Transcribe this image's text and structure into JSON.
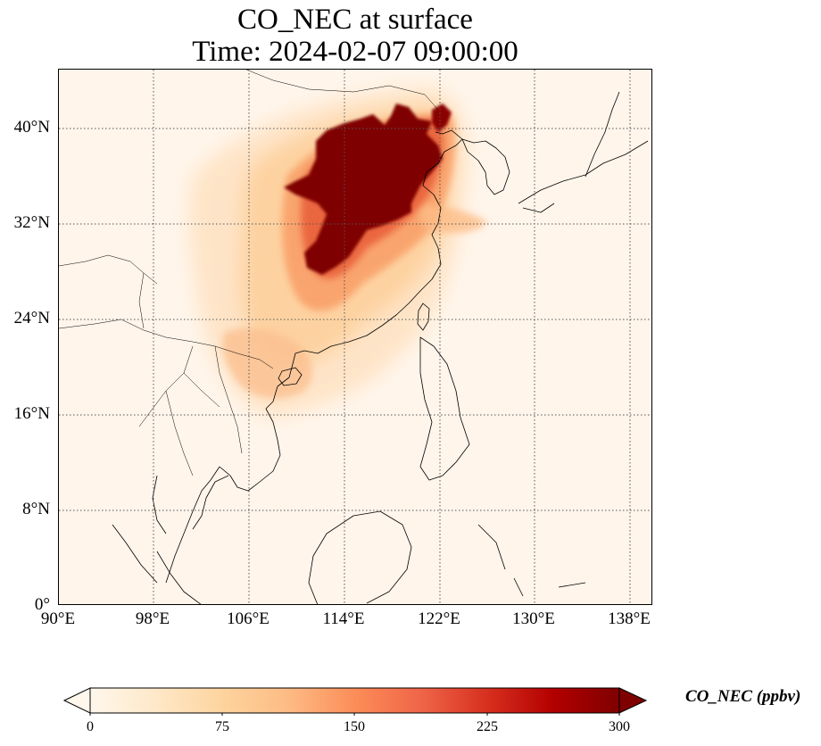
{
  "title": {
    "line1": "CO_NEC at surface",
    "line2": "Time: 2024-02-07 09:00:00"
  },
  "map": {
    "lon_range": [
      90,
      139
    ],
    "lat_range": [
      0,
      45
    ],
    "gridline_style": "dotted",
    "coastlines": true,
    "borders": true
  },
  "axes": {
    "lat_ticks": [
      "0°",
      "8°N",
      "16°N",
      "24°N",
      "32°N",
      "40°N"
    ],
    "lon_ticks": [
      "90°E",
      "98°E",
      "106°E",
      "114°E",
      "122°E",
      "130°E",
      "138°E"
    ]
  },
  "colorbar": {
    "label": "CO_NEC (ppbv)",
    "ticks": [
      "0",
      "75",
      "150",
      "225",
      "300"
    ],
    "range": [
      0,
      300
    ],
    "extend": "both",
    "colormap": "OrRd",
    "colors": [
      "#fff7ec",
      "#fee8c8",
      "#fdd49e",
      "#fdbb84",
      "#fc8d59",
      "#ef6548",
      "#d7301f",
      "#b30000",
      "#7f0000"
    ]
  }
}
